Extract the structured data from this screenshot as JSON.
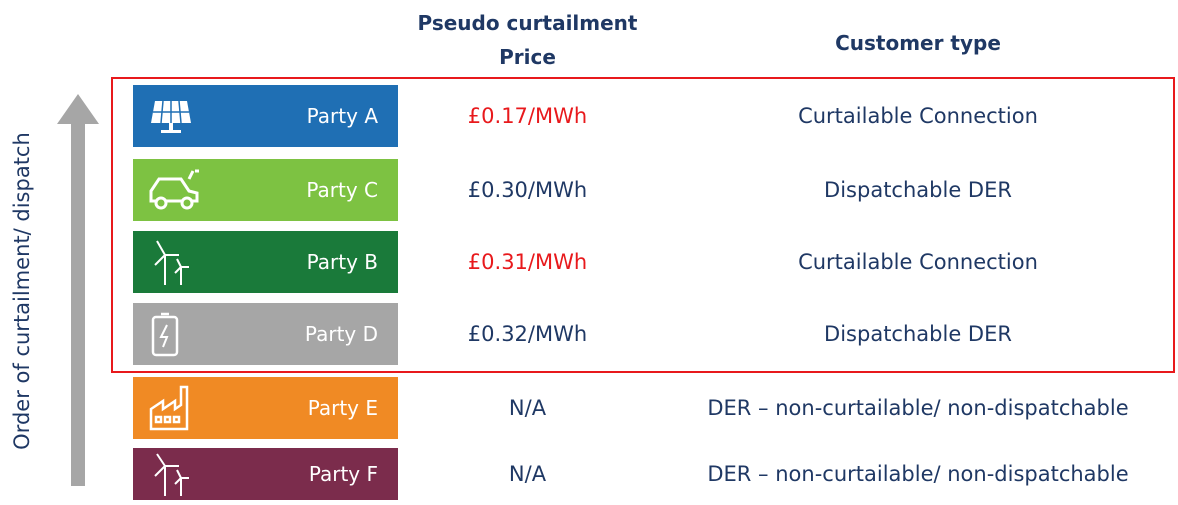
{
  "header": {
    "price": [
      "Pseudo curtailment",
      "Price"
    ],
    "customer_type": "Customer type"
  },
  "axis_label": "Order of curtailment/ dispatch",
  "rows": [
    {
      "party": "Party A",
      "price": "£0.17/MWh",
      "customer_type": "Curtailable Connection"
    },
    {
      "party": "Party C",
      "price": "£0.30/MWh",
      "customer_type": "Dispatchable DER"
    },
    {
      "party": "Party B",
      "price": "£0.31/MWh",
      "customer_type": "Curtailable Connection"
    },
    {
      "party": "Party D",
      "price": "£0.32/MWh",
      "customer_type": "Dispatchable DER"
    },
    {
      "party": "Party E",
      "price": "N/A",
      "customer_type": "DER – non-curtailable/ non-dispatchable"
    },
    {
      "party": "Party F",
      "price": "N/A",
      "customer_type": "DER – non-curtailable/ non-dispatchable"
    }
  ]
}
